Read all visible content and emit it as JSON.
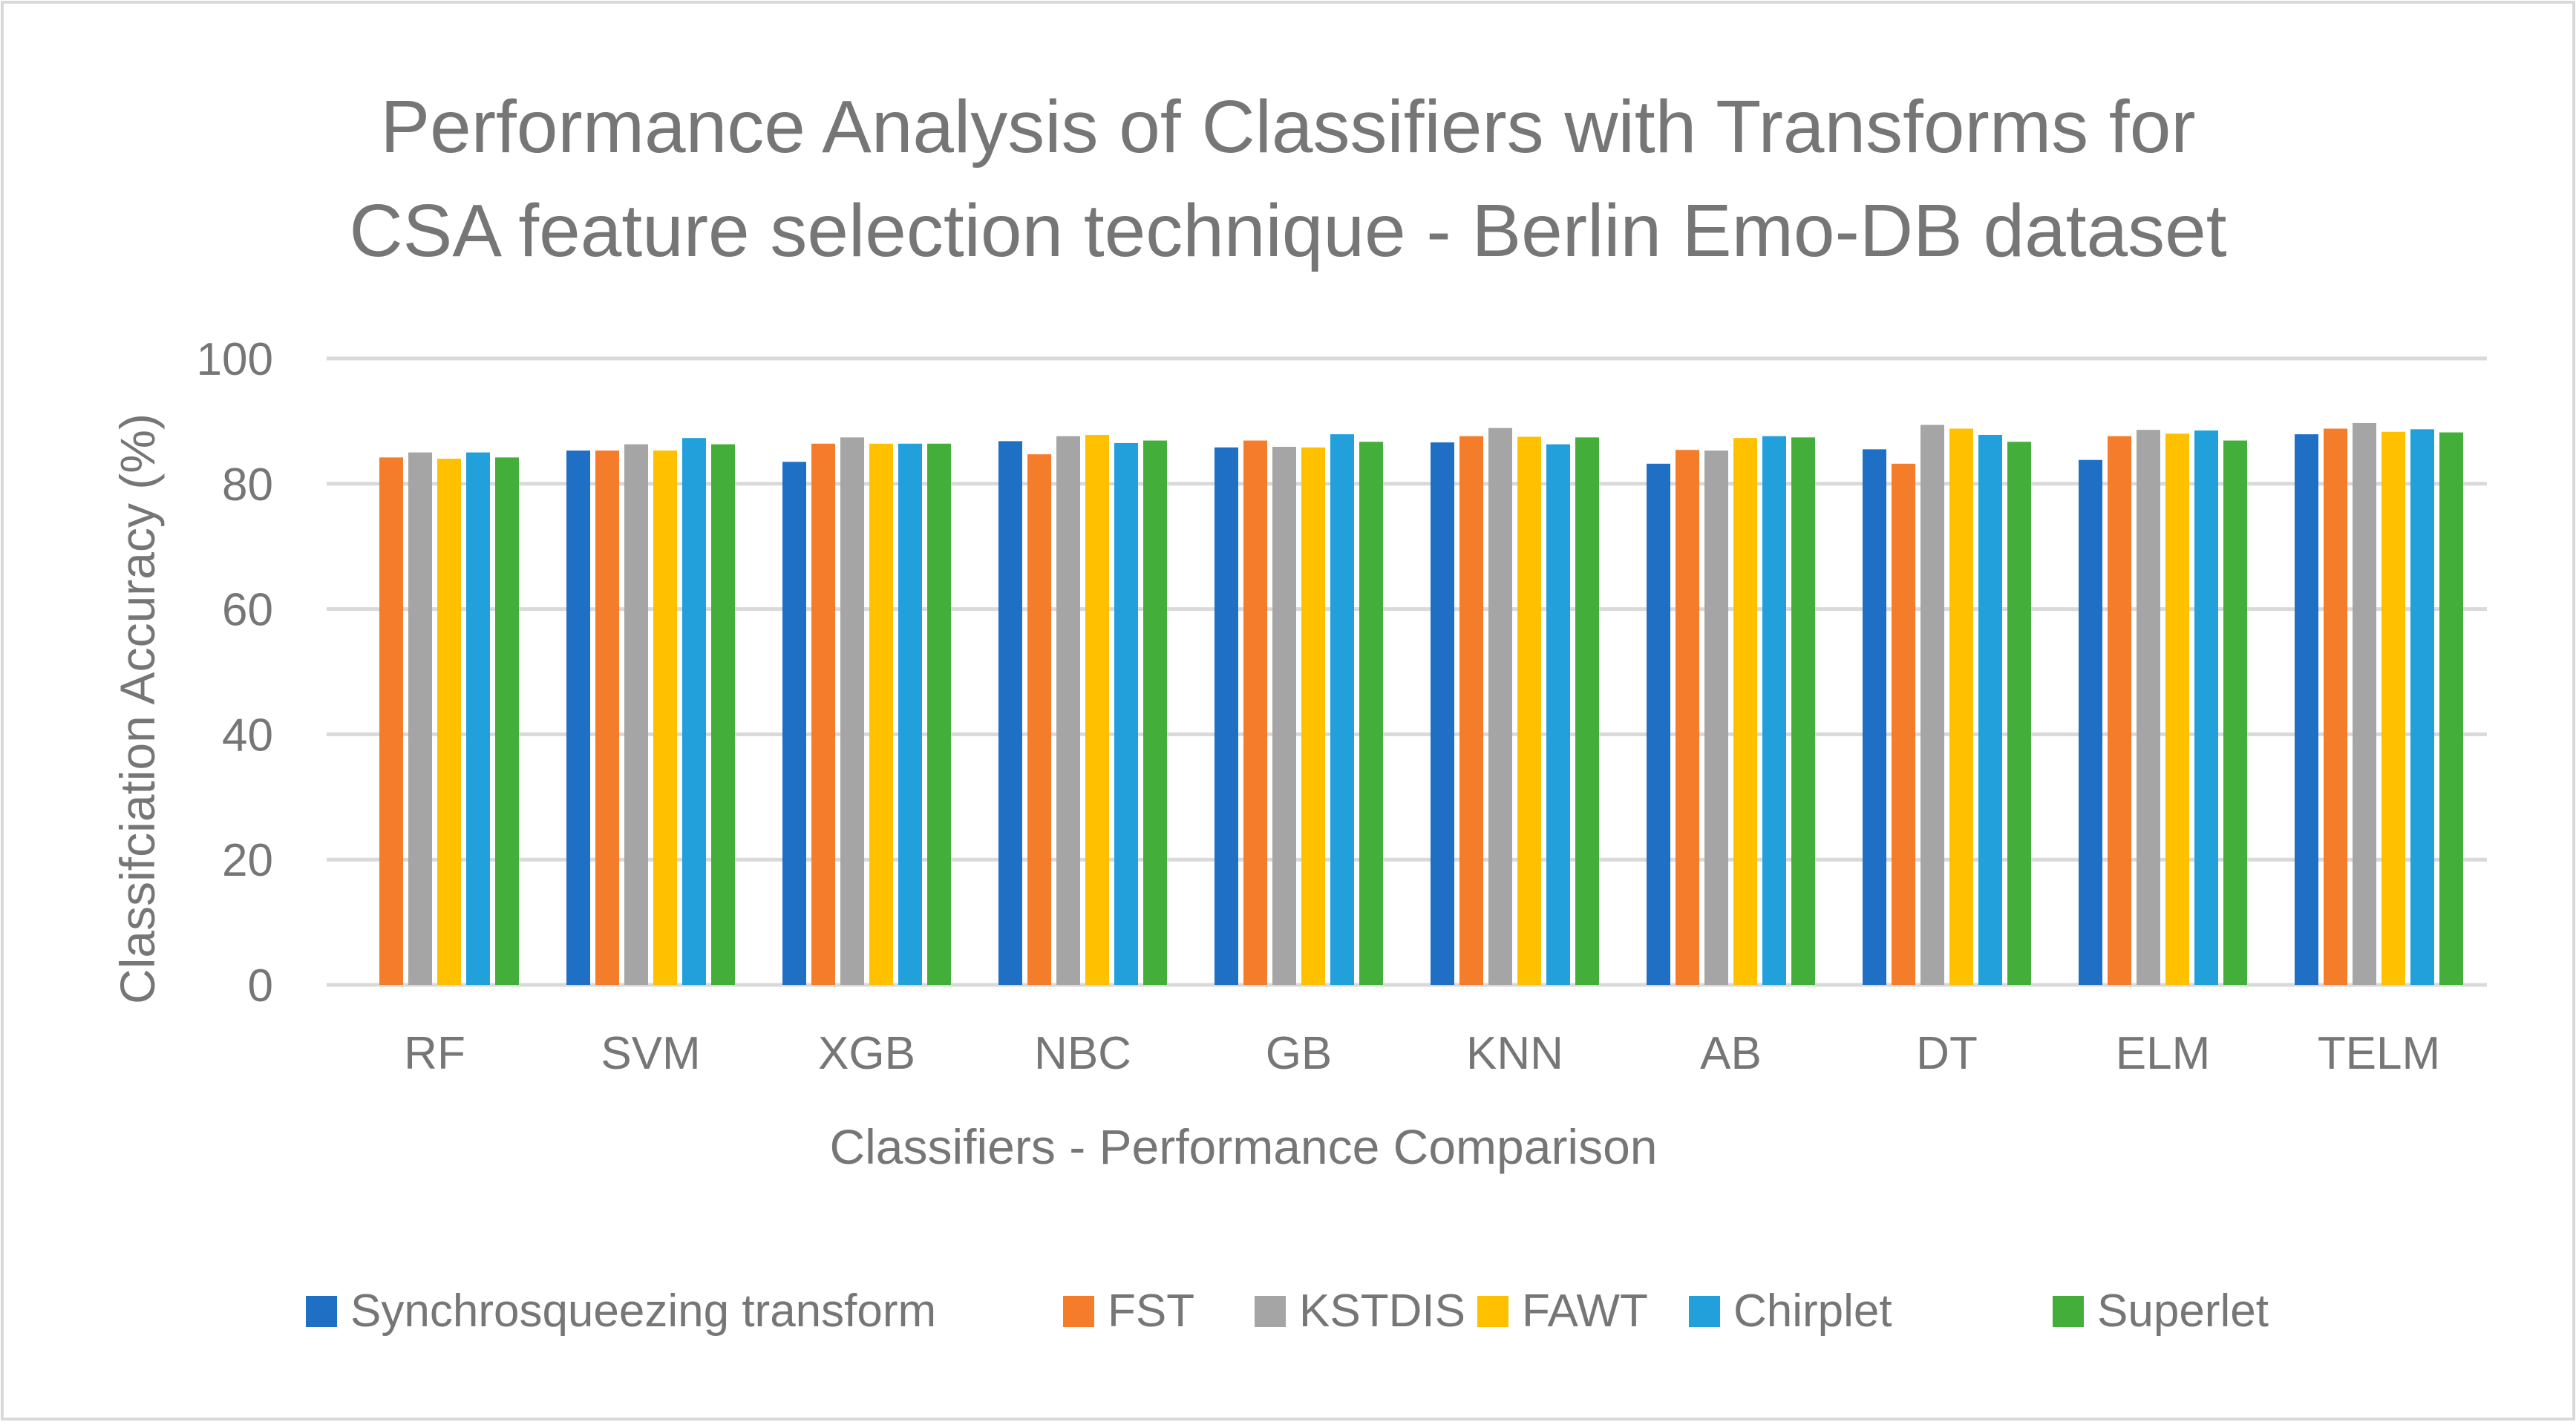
{
  "chart_data": {
    "type": "bar",
    "title_lines": [
      "Performance Analysis of Classifiers with Transforms for",
      "CSA feature selection technique - Berlin Emo-DB dataset"
    ],
    "xlabel": "Classifiers - Performance Comparison",
    "ylabel": "Classifciation Accuracy (%)",
    "ylim": [
      0,
      100
    ],
    "yticks": [
      0,
      20,
      40,
      60,
      80,
      100
    ],
    "grid": true,
    "legend_position": "bottom",
    "categories": [
      "RF",
      "SVM",
      "XGB",
      "NBC",
      "GB",
      "KNN",
      "AB",
      "DT",
      "ELM",
      "TELM"
    ],
    "series": [
      {
        "name": "Synchrosqueezing transform",
        "color": "#1f6fc5",
        "values": [
          0,
          85.3,
          83.5,
          86.8,
          85.8,
          86.6,
          83.2,
          85.5,
          83.8,
          87.9
        ]
      },
      {
        "name": "FST",
        "color": "#f47c2b",
        "values": [
          84.2,
          85.3,
          86.4,
          84.7,
          86.9,
          87.6,
          85.4,
          83.2,
          87.6,
          88.8
        ]
      },
      {
        "name": "KSTDIS",
        "color": "#a5a5a5",
        "values": [
          85.0,
          86.3,
          87.4,
          87.6,
          85.9,
          88.9,
          85.3,
          89.4,
          88.6,
          89.7
        ]
      },
      {
        "name": "FAWT",
        "color": "#ffc000",
        "values": [
          84.0,
          85.3,
          86.4,
          87.8,
          85.8,
          87.5,
          87.3,
          88.8,
          88.0,
          88.3
        ]
      },
      {
        "name": "Chirplet",
        "color": "#21a0db",
        "values": [
          85.0,
          87.3,
          86.4,
          86.5,
          87.9,
          86.3,
          87.6,
          87.8,
          88.5,
          88.7
        ]
      },
      {
        "name": "Superlet",
        "color": "#44ae3a",
        "values": [
          84.2,
          86.3,
          86.4,
          86.9,
          86.7,
          87.4,
          87.4,
          86.7,
          86.9,
          88.2
        ]
      }
    ]
  }
}
